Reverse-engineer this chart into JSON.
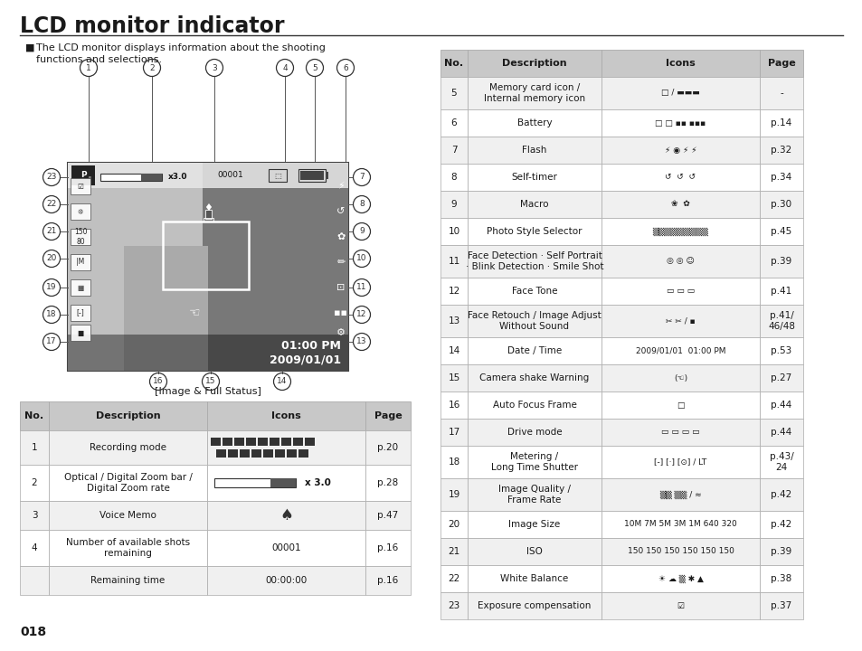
{
  "title": "LCD monitor indicator",
  "background_color": "#ffffff",
  "text_color": "#1a1a1a",
  "page_number": "018",
  "header_bg": "#c8c8c8",
  "row_bg_alt": "#f0f0f0",
  "row_bg_white": "#ffffff",
  "table_border": "#aaaaaa",
  "title_fontsize": 17,
  "body_fontsize": 8.0,
  "left_table_rows": [
    [
      "1",
      "Recording mode",
      "p.20"
    ],
    [
      "2",
      "Optical / Digital Zoom bar /\nDigital Zoom rate",
      "p.28"
    ],
    [
      "3",
      "Voice Memo",
      "p.47"
    ],
    [
      "4",
      "Number of available shots\nremaining",
      "p.16"
    ],
    [
      "",
      "Remaining time",
      "p.16"
    ]
  ],
  "right_table_rows": [
    [
      "5",
      "Memory card icon /\nInternal memory icon",
      "-"
    ],
    [
      "6",
      "Battery",
      "p.14"
    ],
    [
      "7",
      "Flash",
      "p.32"
    ],
    [
      "8",
      "Self-timer",
      "p.34"
    ],
    [
      "9",
      "Macro",
      "p.30"
    ],
    [
      "10",
      "Photo Style Selector",
      "p.45"
    ],
    [
      "11",
      "Face Detection · Self Portrait\n· Blink Detection · Smile Shot",
      "p.39"
    ],
    [
      "12",
      "Face Tone",
      "p.41"
    ],
    [
      "13",
      "Face Retouch / Image Adjust\nWithout Sound",
      "p.41/\n46/48"
    ],
    [
      "14",
      "Date / Time",
      "p.53"
    ],
    [
      "15",
      "Camera shake Warning",
      "p.27"
    ],
    [
      "16",
      "Auto Focus Frame",
      "p.44"
    ],
    [
      "17",
      "Drive mode",
      "p.44"
    ],
    [
      "18",
      "Metering /\nLong Time Shutter",
      "p.43/\n24"
    ],
    [
      "19",
      "Image Quality /\nFrame Rate",
      "p.42"
    ],
    [
      "20",
      "Image Size",
      "p.42"
    ],
    [
      "21",
      "ISO",
      "p.39"
    ],
    [
      "22",
      "White Balance",
      "p.38"
    ],
    [
      "23",
      "Exposure compensation",
      "p.37"
    ]
  ]
}
